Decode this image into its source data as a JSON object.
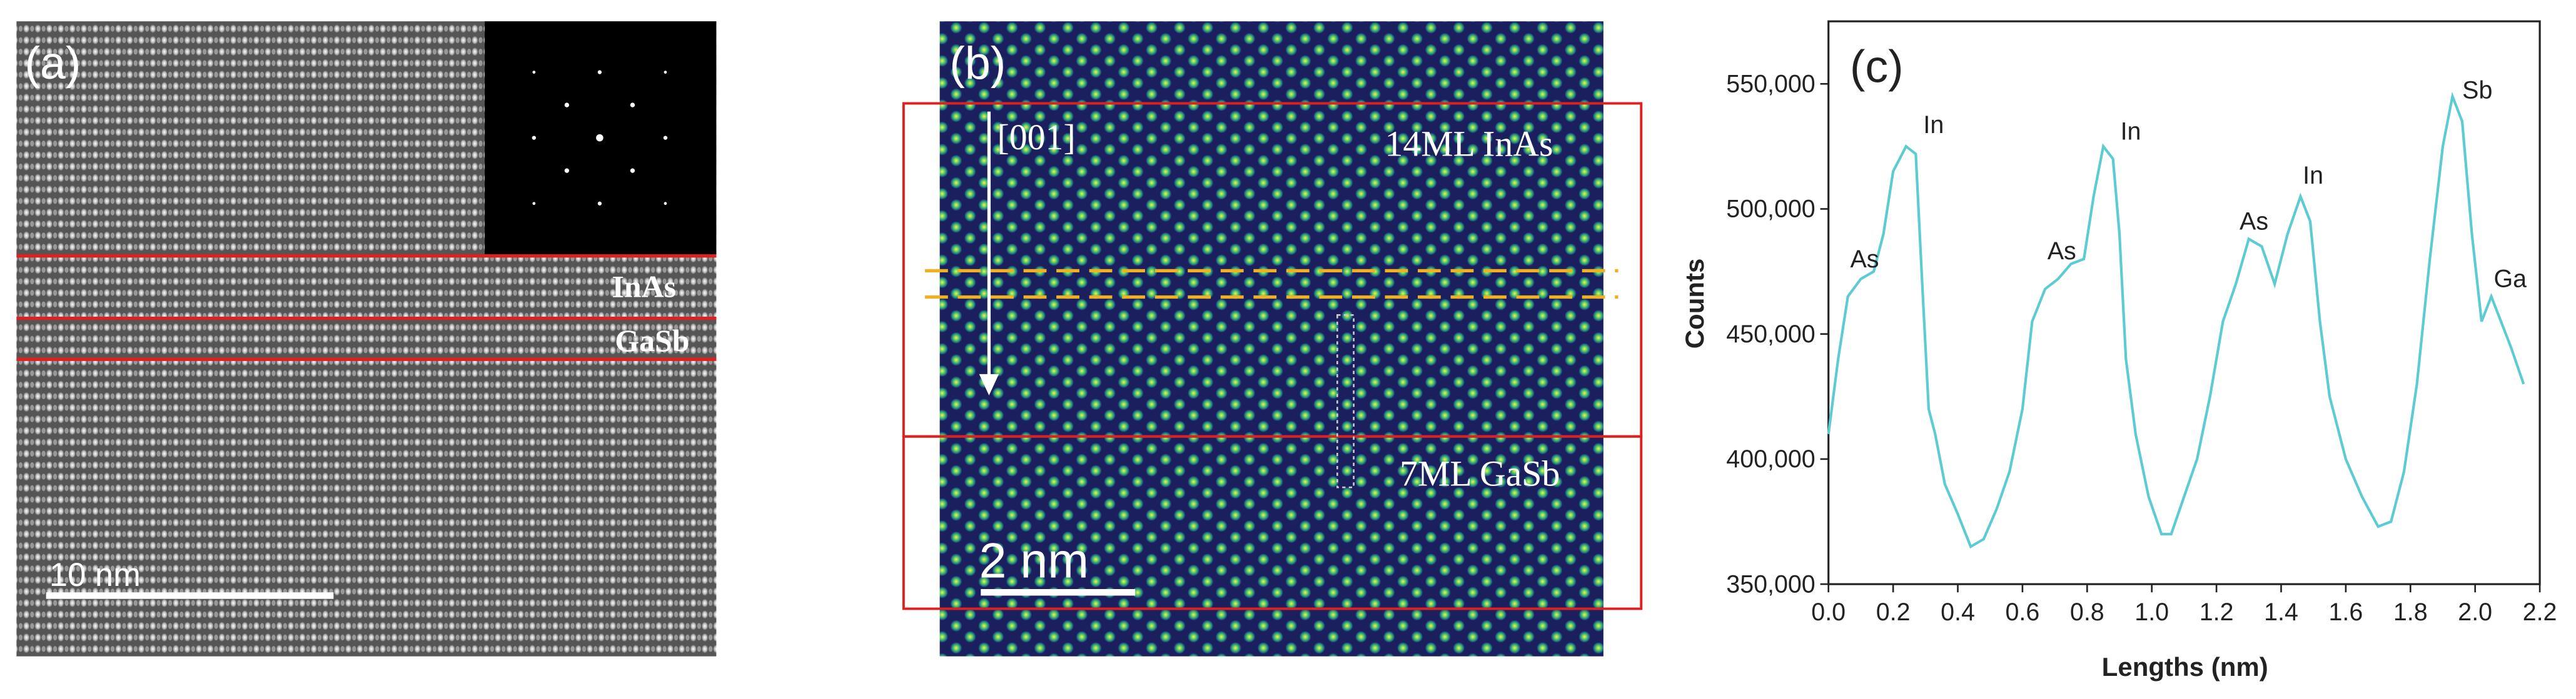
{
  "panel_a": {
    "label": "(a)",
    "layers": [
      "InAs",
      "GaSb"
    ],
    "scale_bar": "10 nm"
  },
  "panel_b": {
    "label": "(b)",
    "direction": "[001]",
    "layers": [
      "14ML InAs",
      "7ML GaSb"
    ],
    "scale_bar": "2 nm"
  },
  "chart_data": {
    "type": "line",
    "title": "(c)",
    "x_label": "Lengths (nm)",
    "y_label": "Counts",
    "color": "#5ccbd2",
    "x": [
      0.0,
      0.03,
      0.06,
      0.1,
      0.14,
      0.17,
      0.2,
      0.24,
      0.27,
      0.29,
      0.31,
      0.33,
      0.36,
      0.4,
      0.44,
      0.48,
      0.52,
      0.56,
      0.6,
      0.63,
      0.67,
      0.71,
      0.75,
      0.79,
      0.82,
      0.85,
      0.88,
      0.9,
      0.92,
      0.95,
      0.99,
      1.03,
      1.06,
      1.1,
      1.14,
      1.18,
      1.22,
      1.26,
      1.3,
      1.34,
      1.38,
      1.42,
      1.46,
      1.49,
      1.52,
      1.55,
      1.6,
      1.65,
      1.7,
      1.74,
      1.78,
      1.82,
      1.86,
      1.9,
      1.93,
      1.96,
      1.99,
      2.02,
      2.05,
      2.08,
      2.11,
      2.15
    ],
    "values": [
      410000,
      440000,
      465000,
      472000,
      475000,
      490000,
      515000,
      525000,
      522000,
      470000,
      420000,
      410000,
      390000,
      378000,
      365000,
      368000,
      380000,
      395000,
      420000,
      455000,
      468000,
      472000,
      478000,
      480000,
      505000,
      525000,
      520000,
      490000,
      440000,
      410000,
      385000,
      370000,
      370000,
      385000,
      400000,
      425000,
      455000,
      470000,
      488000,
      485000,
      470000,
      490000,
      505000,
      495000,
      455000,
      425000,
      400000,
      385000,
      373000,
      375000,
      395000,
      430000,
      480000,
      525000,
      545000,
      535000,
      490000,
      455000,
      465000,
      455000,
      445000,
      430000
    ],
    "annotations": [
      "As",
      "In",
      "As",
      "In",
      "As",
      "In",
      "Sb",
      "Ga"
    ],
    "xlim": [
      0,
      2.2
    ],
    "ylim": [
      350000,
      575000
    ],
    "xticks": [
      {
        "value": 0,
        "label": "0.0"
      },
      0.2,
      0.4,
      0.6,
      0.8,
      {
        "value": 1,
        "label": "1.0"
      },
      1.2,
      1.4,
      1.6,
      1.8,
      {
        "value": 2,
        "label": "2.0"
      },
      2.2
    ],
    "yticks": [
      {
        "value": 350000,
        "label": "350,000"
      },
      {
        "value": 400000,
        "label": "400,000"
      },
      {
        "value": 450000,
        "label": "450,000"
      },
      {
        "value": 500000,
        "label": "500,000"
      },
      {
        "value": 550000,
        "label": "550,000"
      }
    ]
  }
}
